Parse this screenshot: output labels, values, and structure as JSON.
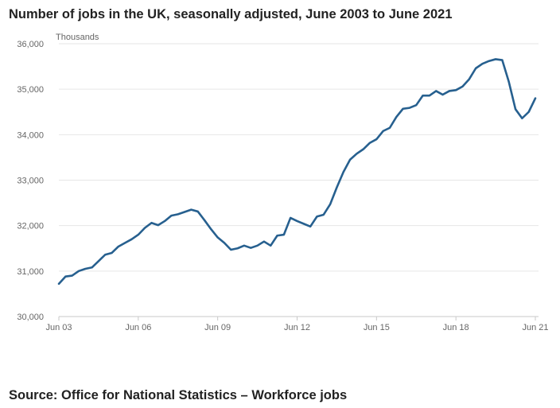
{
  "title": "Number of jobs in the UK, seasonally adjusted, June 2003 to June 2021",
  "source": "Source: Office for National Statistics – Workforce jobs",
  "colors": {
    "line": "#27608f",
    "grid": "#e6e6e6",
    "axis": "#c9c9c9",
    "text": "#222222"
  },
  "chart_data": {
    "type": "line",
    "title": "Number of jobs in the UK, seasonally adjusted, June 2003 to June 2021",
    "ylabel": "Thousands",
    "xlabel": "",
    "ylim": [
      30000,
      36000
    ],
    "yticks": [
      30000,
      31000,
      32000,
      33000,
      34000,
      35000,
      36000
    ],
    "ytick_labels": [
      "30,000",
      "31,000",
      "32,000",
      "33,000",
      "34,000",
      "35,000",
      "36,000"
    ],
    "xlim": [
      2003.25,
      2021.25
    ],
    "xticks": [
      2003.25,
      2006.25,
      2009.25,
      2012.25,
      2015.25,
      2018.25,
      2021.25
    ],
    "xtick_labels": [
      "Jun 03",
      "Jun 06",
      "Jun 09",
      "Jun 12",
      "Jun 15",
      "Jun 18",
      "Jun 21"
    ],
    "grid": true,
    "legend": "none",
    "series": [
      {
        "x": [
          2003.25,
          2003.5,
          2003.75,
          2004.0,
          2004.25,
          2004.5,
          2004.75,
          2005.0,
          2005.25,
          2005.5,
          2005.75,
          2006.0,
          2006.25,
          2006.5,
          2006.75,
          2007.0,
          2007.25,
          2007.5,
          2007.75,
          2008.0,
          2008.25,
          2008.5,
          2008.75,
          2009.0,
          2009.25,
          2009.5,
          2009.75,
          2010.0,
          2010.25,
          2010.5,
          2010.75,
          2011.0,
          2011.25,
          2011.5,
          2011.75,
          2012.0,
          2012.25,
          2012.5,
          2012.75,
          2013.0,
          2013.25,
          2013.5,
          2013.75,
          2014.0,
          2014.25,
          2014.5,
          2014.75,
          2015.0,
          2015.25,
          2015.5,
          2015.75,
          2016.0,
          2016.25,
          2016.5,
          2016.75,
          2017.0,
          2017.25,
          2017.5,
          2017.75,
          2018.0,
          2018.25,
          2018.5,
          2018.75,
          2019.0,
          2019.25,
          2019.5,
          2019.75,
          2020.0,
          2020.25,
          2020.5,
          2020.75,
          2021.0,
          2021.25
        ],
        "values": [
          30720,
          30880,
          30900,
          31000,
          31050,
          31080,
          31220,
          31360,
          31400,
          31540,
          31620,
          31700,
          31800,
          31950,
          32060,
          32010,
          32100,
          32220,
          32250,
          32300,
          32350,
          32310,
          32120,
          31920,
          31740,
          31620,
          31470,
          31500,
          31560,
          31510,
          31560,
          31650,
          31560,
          31780,
          31800,
          32170,
          32100,
          32040,
          31980,
          32200,
          32240,
          32470,
          32840,
          33180,
          33450,
          33580,
          33680,
          33820,
          33900,
          34080,
          34150,
          34390,
          34570,
          34590,
          34650,
          34860,
          34860,
          34960,
          34880,
          34960,
          34980,
          35060,
          35220,
          35460,
          35560,
          35620,
          35660,
          35640,
          35160,
          34560,
          34360,
          34500,
          34800
        ]
      }
    ]
  }
}
